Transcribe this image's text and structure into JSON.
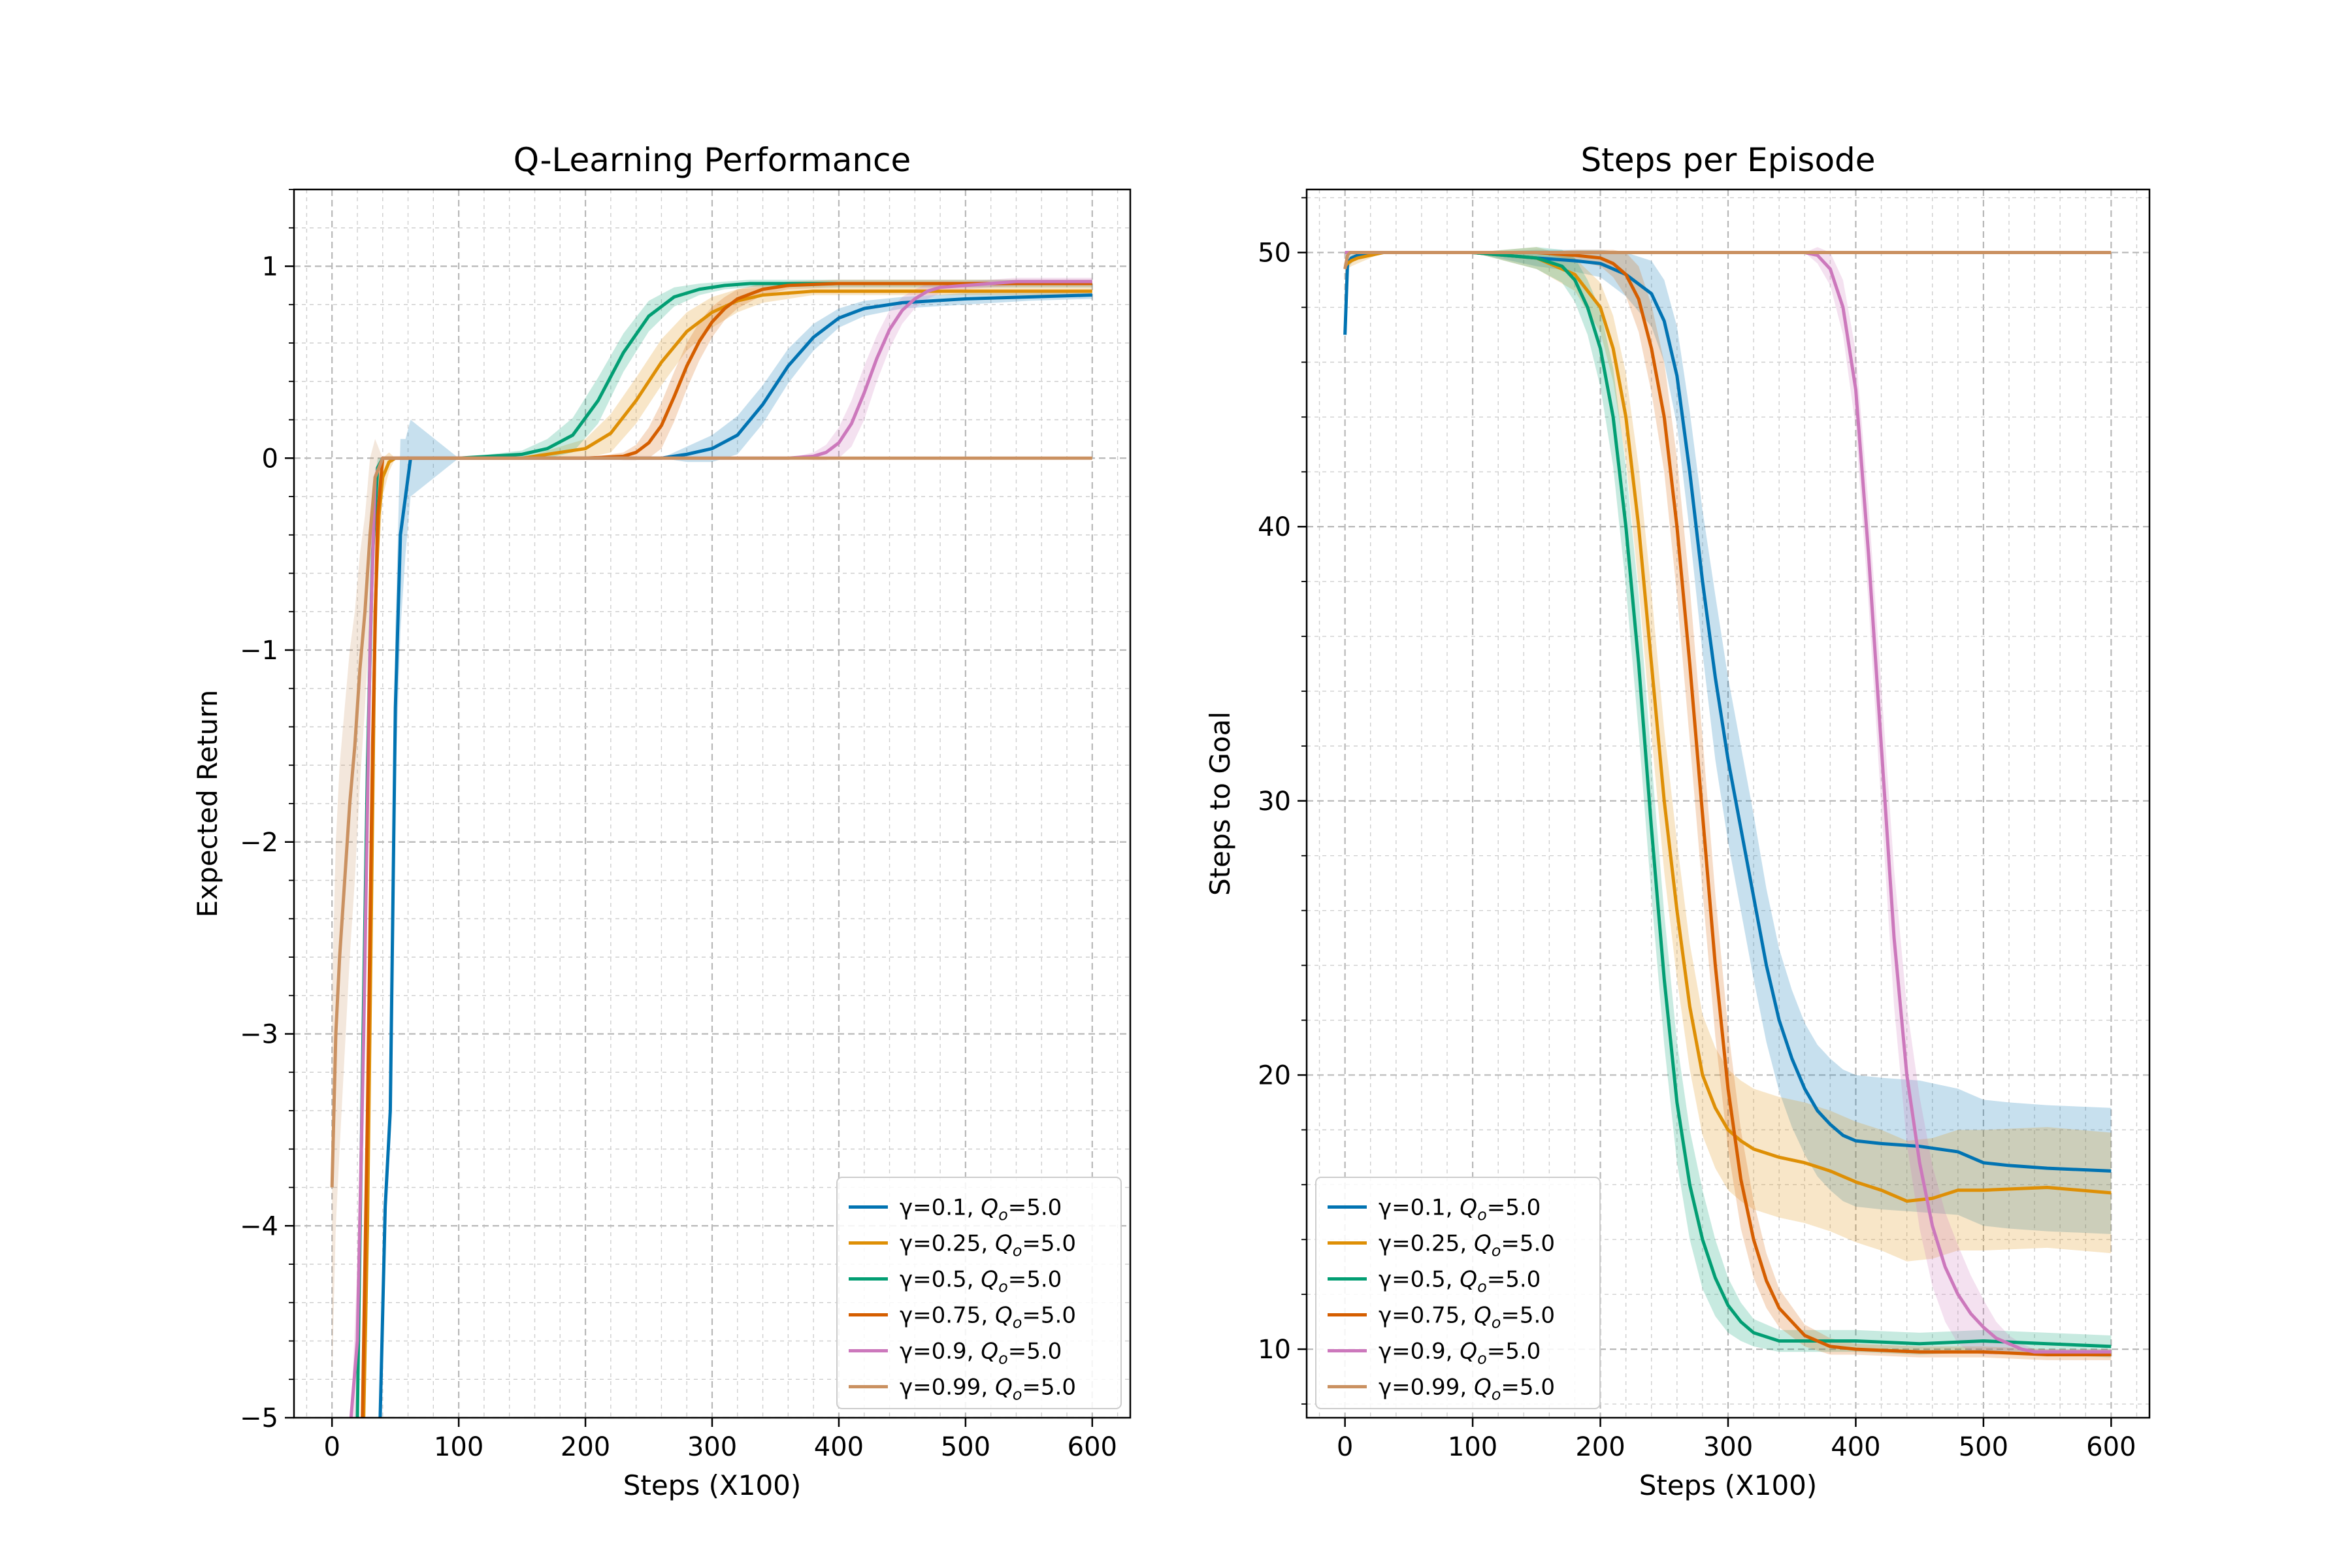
{
  "chart_data": [
    {
      "type": "line",
      "title": "Q-Learning Performance",
      "xlabel": "Steps (X100)",
      "ylabel": "Expected Return",
      "xlim": [
        -30,
        630
      ],
      "ylim": [
        -5,
        1.4
      ],
      "xticks": [
        0,
        100,
        200,
        300,
        400,
        500,
        600
      ],
      "yticks": [
        -5,
        -4,
        -3,
        -2,
        -1,
        0,
        1
      ],
      "xtick_labels": [
        "0",
        "100",
        "200",
        "300",
        "400",
        "500",
        "600"
      ],
      "ytick_labels": [
        "−5",
        "−4",
        "−3",
        "−2",
        "−1",
        "0",
        "1"
      ],
      "grid": true,
      "legend_position": "lower-right",
      "series": [
        {
          "name": "γ=0.1, Q_o=5.0",
          "color": "#0173b2",
          "x": [
            38,
            42,
            46,
            50,
            54,
            58,
            62,
            100,
            150,
            200,
            220,
            240,
            260,
            280,
            300,
            320,
            340,
            360,
            380,
            400,
            420,
            450,
            500,
            550,
            600
          ],
          "y": [
            -5.0,
            -3.9,
            -3.4,
            -1.3,
            -0.4,
            -0.2,
            0,
            0,
            0,
            0,
            0,
            0,
            0,
            0.02,
            0.05,
            0.12,
            0.28,
            0.48,
            0.63,
            0.73,
            0.78,
            0.81,
            0.83,
            0.84,
            0.85
          ],
          "band": [
            0,
            0,
            0,
            0.4,
            0.5,
            0.3,
            0.2,
            0,
            0,
            0,
            0,
            0,
            0,
            0.04,
            0.07,
            0.1,
            0.1,
            0.09,
            0.07,
            0.05,
            0.04,
            0.03,
            0.03,
            0.02,
            0.02
          ]
        },
        {
          "name": "γ=0.25, Q_o=5.0",
          "color": "#de8f05",
          "x": [
            25,
            28,
            31,
            34,
            37,
            40,
            45,
            50,
            100,
            150,
            200,
            220,
            240,
            260,
            280,
            300,
            320,
            340,
            360,
            380,
            420,
            450,
            500,
            600
          ],
          "y": [
            -5.0,
            -4.0,
            -2.4,
            -0.8,
            -0.3,
            -0.1,
            -0.02,
            0,
            0,
            0,
            0.05,
            0.13,
            0.3,
            0.5,
            0.66,
            0.76,
            0.82,
            0.85,
            0.86,
            0.87,
            0.87,
            0.87,
            0.87,
            0.87
          ],
          "band": [
            0,
            0.5,
            0.5,
            0.3,
            0.2,
            0.1,
            0.05,
            0,
            0,
            0,
            0.05,
            0.1,
            0.12,
            0.12,
            0.1,
            0.08,
            0.06,
            0.04,
            0.03,
            0.02,
            0.02,
            0.02,
            0.02,
            0.02
          ]
        },
        {
          "name": "γ=0.5, Q_o=5.0",
          "color": "#029e73",
          "x": [
            20,
            24,
            28,
            32,
            36,
            40,
            100,
            150,
            170,
            190,
            210,
            230,
            250,
            270,
            290,
            310,
            330,
            360,
            400,
            600
          ],
          "y": [
            -5.0,
            -3.2,
            -1.6,
            -0.5,
            -0.05,
            0,
            0,
            0.02,
            0.05,
            0.12,
            0.3,
            0.55,
            0.74,
            0.84,
            0.88,
            0.9,
            0.91,
            0.91,
            0.91,
            0.91
          ],
          "band": [
            0,
            0.5,
            0.5,
            0.3,
            0.05,
            0,
            0,
            0.02,
            0.05,
            0.09,
            0.12,
            0.1,
            0.08,
            0.05,
            0.03,
            0.02,
            0.02,
            0.02,
            0.02,
            0.02
          ]
        },
        {
          "name": "γ=0.75, Q_o=5.0",
          "color": "#d55e00",
          "x": [
            24,
            28,
            32,
            36,
            40,
            100,
            200,
            230,
            240,
            250,
            260,
            270,
            280,
            290,
            300,
            310,
            320,
            340,
            360,
            400,
            450,
            500,
            600
          ],
          "y": [
            -5.0,
            -3.4,
            -1.5,
            -0.3,
            0,
            0,
            0,
            0.01,
            0.03,
            0.08,
            0.17,
            0.32,
            0.48,
            0.61,
            0.71,
            0.78,
            0.83,
            0.88,
            0.9,
            0.91,
            0.91,
            0.91,
            0.91
          ],
          "band": [
            0,
            0.5,
            0.5,
            0.2,
            0,
            0,
            0,
            0.02,
            0.04,
            0.08,
            0.12,
            0.13,
            0.12,
            0.1,
            0.08,
            0.06,
            0.05,
            0.03,
            0.02,
            0.02,
            0.02,
            0.02,
            0.02
          ]
        },
        {
          "name": "γ=0.9, Q_o=5.0",
          "color": "#cc78bc",
          "x": [
            15,
            20,
            25,
            30,
            34,
            40,
            100,
            200,
            300,
            360,
            380,
            390,
            400,
            410,
            420,
            430,
            440,
            450,
            460,
            470,
            480,
            500,
            520,
            540,
            600
          ],
          "y": [
            -5.0,
            -4.6,
            -3.0,
            -1.0,
            -0.1,
            0,
            0,
            0,
            0,
            0,
            0.01,
            0.03,
            0.08,
            0.18,
            0.34,
            0.52,
            0.67,
            0.77,
            0.83,
            0.87,
            0.89,
            0.9,
            0.91,
            0.92,
            0.92
          ],
          "band": [
            0,
            0.4,
            0.5,
            0.3,
            0.05,
            0,
            0,
            0,
            0,
            0,
            0.02,
            0.04,
            0.08,
            0.12,
            0.14,
            0.12,
            0.1,
            0.07,
            0.05,
            0.04,
            0.03,
            0.02,
            0.02,
            0.02,
            0.02
          ]
        },
        {
          "name": "γ=0.99, Q_o=5.0",
          "color": "#ca9161",
          "x": [
            0,
            3,
            6,
            10,
            14,
            18,
            22,
            26,
            30,
            34,
            40,
            100,
            200,
            300,
            400,
            500,
            600
          ],
          "y": [
            -3.8,
            -3.0,
            -2.6,
            -2.2,
            -1.8,
            -1.5,
            -1.1,
            -0.8,
            -0.4,
            -0.1,
            0,
            0,
            0,
            0,
            0,
            0,
            0
          ],
          "band": [
            1.0,
            1.0,
            1.0,
            0.9,
            0.8,
            0.7,
            0.6,
            0.5,
            0.4,
            0.2,
            0,
            0,
            0,
            0,
            0,
            0,
            0
          ]
        }
      ]
    },
    {
      "type": "line",
      "title": "Steps per Episode",
      "xlabel": "Steps (X100)",
      "ylabel": "Steps to Goal",
      "xlim": [
        -30,
        630
      ],
      "ylim": [
        7.5,
        52.3
      ],
      "xticks": [
        0,
        100,
        200,
        300,
        400,
        500,
        600
      ],
      "yticks": [
        10,
        20,
        30,
        40,
        50
      ],
      "xtick_labels": [
        "0",
        "100",
        "200",
        "300",
        "400",
        "500",
        "600"
      ],
      "ytick_labels": [
        "10",
        "20",
        "30",
        "40",
        "50"
      ],
      "grid": true,
      "legend_position": "lower-left",
      "series": [
        {
          "name": "γ=0.1, Q_o=5.0",
          "color": "#0173b2",
          "x": [
            0,
            2,
            5,
            10,
            30,
            60,
            100,
            150,
            180,
            200,
            220,
            240,
            250,
            260,
            270,
            280,
            290,
            300,
            310,
            320,
            330,
            340,
            350,
            360,
            370,
            380,
            390,
            400,
            420,
            450,
            480,
            500,
            520,
            550,
            600
          ],
          "y": [
            47,
            49.6,
            49.8,
            49.9,
            50,
            50,
            50,
            49.8,
            49.7,
            49.6,
            49.2,
            48.5,
            47.5,
            45.5,
            42,
            38,
            34.5,
            31.5,
            29,
            26.5,
            24,
            22,
            20.6,
            19.5,
            18.7,
            18.2,
            17.8,
            17.6,
            17.5,
            17.4,
            17.2,
            16.8,
            16.7,
            16.6,
            16.5
          ],
          "band": [
            0,
            0.2,
            0.2,
            0.1,
            0,
            0,
            0,
            0.3,
            0.4,
            0.5,
            0.8,
            1.2,
            1.5,
            1.8,
            2.2,
            2.6,
            3,
            3,
            3,
            3,
            2.8,
            2.6,
            2.5,
            2.4,
            2.4,
            2.4,
            2.4,
            2.4,
            2.4,
            2.4,
            2.3,
            2.3,
            2.3,
            2.3,
            2.3
          ]
        },
        {
          "name": "γ=0.25, Q_o=5.0",
          "color": "#de8f05",
          "x": [
            0,
            2,
            5,
            10,
            30,
            60,
            100,
            150,
            180,
            200,
            210,
            220,
            230,
            240,
            250,
            260,
            270,
            280,
            290,
            300,
            310,
            320,
            340,
            360,
            380,
            400,
            420,
            440,
            460,
            480,
            500,
            550,
            600
          ],
          "y": [
            49.5,
            49.6,
            49.7,
            49.8,
            50,
            50,
            50,
            49.8,
            49.2,
            48,
            46.5,
            44,
            40,
            35,
            30,
            26,
            22.5,
            20,
            18.8,
            18,
            17.6,
            17.3,
            17,
            16.8,
            16.5,
            16.1,
            15.8,
            15.4,
            15.5,
            15.8,
            15.8,
            15.9,
            15.7
          ],
          "band": [
            0,
            0.2,
            0.2,
            0.2,
            0,
            0,
            0,
            0.4,
            0.6,
            0.9,
            1.2,
            1.6,
            2.2,
            2.6,
            2.6,
            2.5,
            2.3,
            2.2,
            2.2,
            2.2,
            2.2,
            2.2,
            2.2,
            2.2,
            2.2,
            2.2,
            2.2,
            2.2,
            2.2,
            2.2,
            2.2,
            2.2,
            2.2
          ]
        },
        {
          "name": "γ=0.5, Q_o=5.0",
          "color": "#029e73",
          "x": [
            0,
            3,
            10,
            30,
            60,
            100,
            150,
            170,
            180,
            190,
            200,
            210,
            220,
            230,
            240,
            250,
            260,
            270,
            280,
            290,
            300,
            310,
            320,
            340,
            360,
            380,
            400,
            450,
            500,
            550,
            600
          ],
          "y": [
            50,
            50,
            50,
            50,
            50,
            50,
            49.8,
            49.5,
            49,
            48,
            46.5,
            44,
            40,
            35,
            29,
            23.5,
            19,
            16,
            14,
            12.6,
            11.6,
            11,
            10.6,
            10.3,
            10.3,
            10.3,
            10.3,
            10.2,
            10.3,
            10.2,
            10.1
          ],
          "band": [
            0,
            0,
            0,
            0,
            0,
            0,
            0.4,
            0.6,
            0.8,
            1,
            1.4,
            1.8,
            2.2,
            2.5,
            2.5,
            2.4,
            2.2,
            2,
            1.8,
            1.4,
            1,
            0.7,
            0.5,
            0.4,
            0.4,
            0.4,
            0.4,
            0.4,
            0.4,
            0.4,
            0.4
          ]
        },
        {
          "name": "γ=0.75, Q_o=5.0",
          "color": "#d55e00",
          "x": [
            0,
            3,
            10,
            30,
            60,
            100,
            150,
            180,
            200,
            210,
            220,
            230,
            240,
            250,
            260,
            270,
            280,
            290,
            300,
            310,
            320,
            330,
            340,
            360,
            380,
            400,
            450,
            500,
            550,
            600
          ],
          "y": [
            50,
            50,
            50,
            50,
            50,
            50,
            50,
            49.9,
            49.8,
            49.6,
            49.2,
            48.3,
            46.5,
            44,
            40,
            35,
            29.5,
            24,
            19.5,
            16.2,
            14,
            12.5,
            11.5,
            10.5,
            10.1,
            10,
            9.9,
            9.9,
            9.8,
            9.8
          ],
          "band": [
            0,
            0,
            0,
            0,
            0,
            0,
            0,
            0.2,
            0.3,
            0.5,
            0.8,
            1.2,
            1.6,
            2,
            2.5,
            2.8,
            2.8,
            2.6,
            2.2,
            1.8,
            1.4,
            1,
            0.7,
            0.4,
            0.3,
            0.2,
            0.2,
            0.2,
            0.2,
            0.2
          ]
        },
        {
          "name": "γ=0.9, Q_o=5.0",
          "color": "#cc78bc",
          "x": [
            0,
            3,
            10,
            30,
            100,
            200,
            300,
            360,
            370,
            380,
            390,
            400,
            410,
            420,
            430,
            440,
            450,
            460,
            470,
            480,
            490,
            500,
            510,
            520,
            530,
            540,
            600
          ],
          "y": [
            50,
            50,
            50,
            50,
            50,
            50,
            50,
            50,
            49.9,
            49.4,
            48,
            45,
            39,
            32,
            25,
            20,
            16.8,
            14.5,
            13,
            12,
            11.3,
            10.8,
            10.4,
            10.2,
            10,
            9.9,
            9.9
          ],
          "band": [
            0,
            0,
            0,
            0,
            0,
            0,
            0,
            0,
            0.3,
            0.6,
            1,
            1.4,
            1.8,
            2.2,
            2.5,
            2.5,
            2.4,
            2.2,
            2,
            1.8,
            1.4,
            1,
            0.6,
            0.3,
            0.2,
            0.1,
            0.1
          ]
        },
        {
          "name": "γ=0.99, Q_o=5.0",
          "color": "#ca9161",
          "x": [
            0,
            2,
            4,
            6,
            10,
            20,
            100,
            200,
            300,
            400,
            500,
            600
          ],
          "y": [
            49.4,
            49.9,
            50,
            50,
            50,
            50,
            50,
            50,
            50,
            50,
            50,
            50
          ],
          "band": [
            0.3,
            0.1,
            0,
            0,
            0,
            0,
            0,
            0,
            0,
            0,
            0,
            0
          ]
        }
      ]
    }
  ]
}
